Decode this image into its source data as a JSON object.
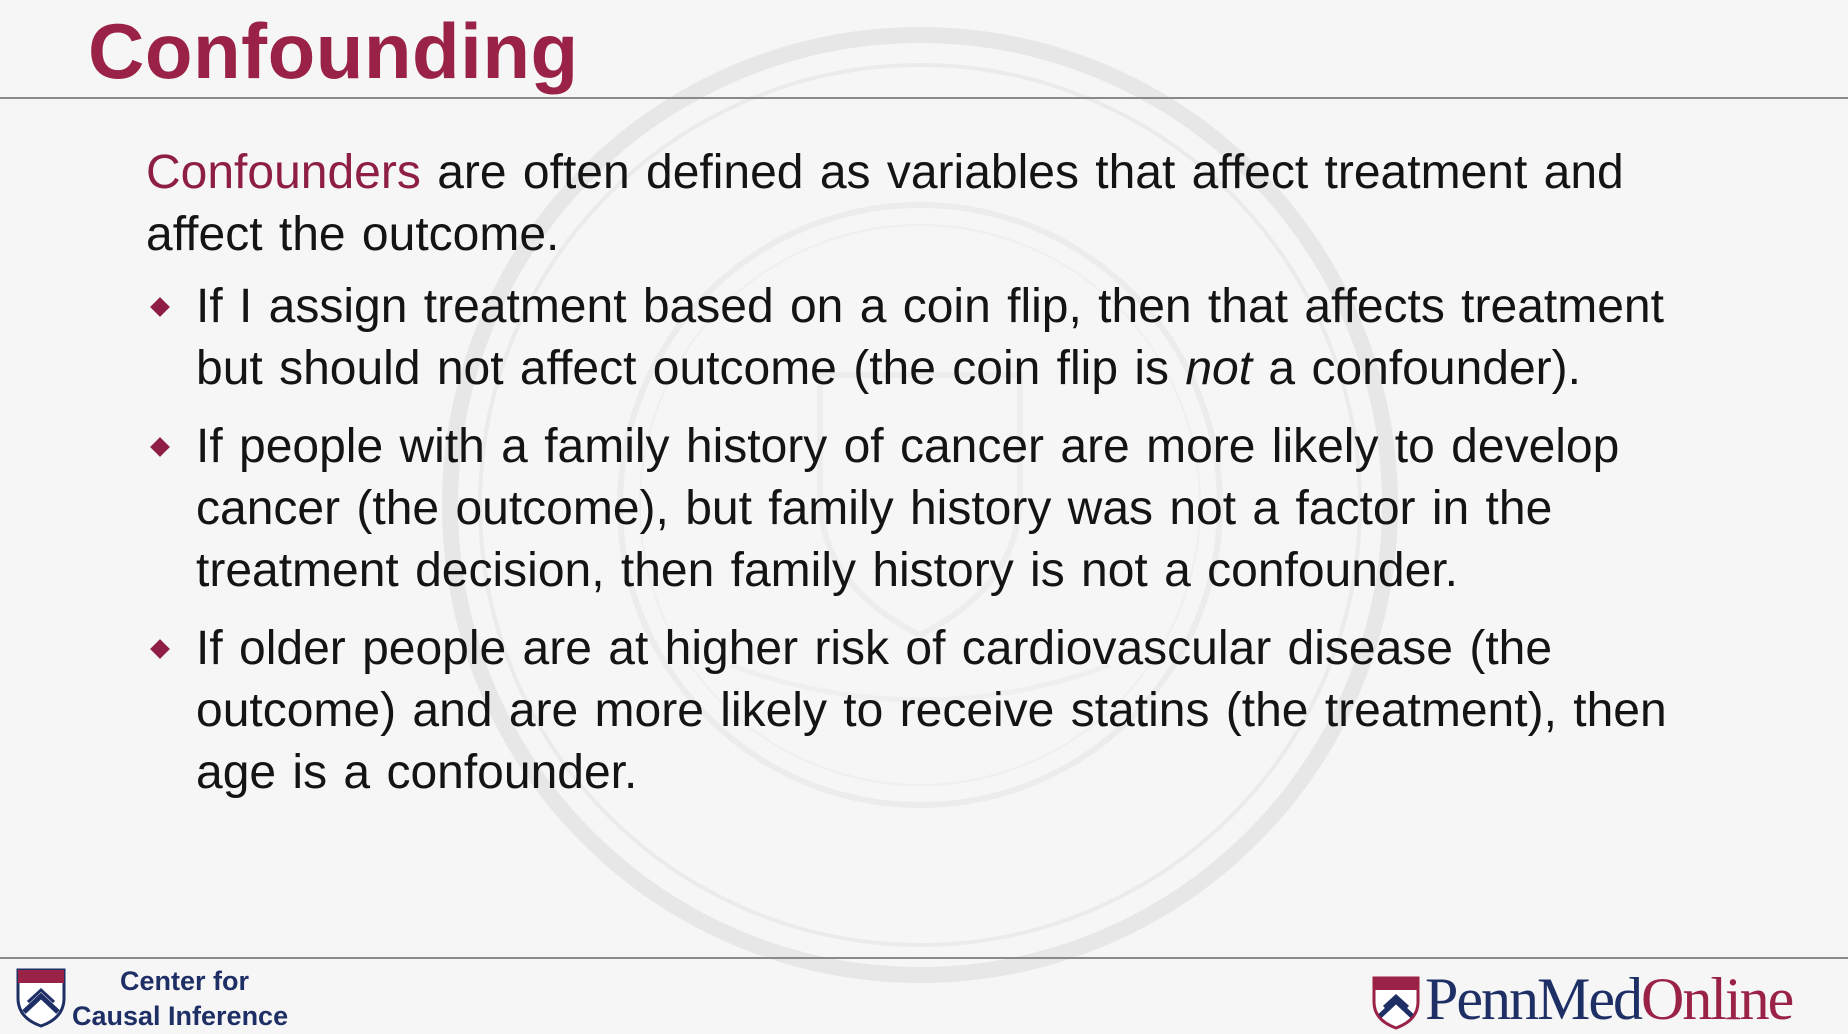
{
  "slide": {
    "title": "Confounding",
    "intro": {
      "term": "Confounders",
      "rest": " are often defined as variables that affect treatment and affect the outcome."
    },
    "bullets": [
      {
        "before": "If I assign treatment based on a coin flip, then that affects treatment but should not affect outcome (the coin flip is ",
        "emphasis": "not",
        "after": " a confounder)."
      },
      {
        "text": "If people with a family history of cancer are more likely to develop cancer (the outcome), but family history was not a factor in the treatment decision, then family history is not a confounder."
      },
      {
        "text": "If older people are at higher risk of cardiovascular disease (the outcome) and are more likely to receive statins (the treatment), then age is a confounder."
      }
    ]
  },
  "footer": {
    "left_logo": {
      "icon": "penn-shield-icon",
      "line1": "Center for",
      "line2": "Causal Inference"
    },
    "right_logo": {
      "icon": "penn-shield-icon",
      "part1": "PennMed",
      "part2": "Online"
    }
  },
  "watermark": {
    "icon": "university-seal-icon"
  },
  "colors": {
    "title": "#9b2247",
    "accent": "#8e1e45",
    "logo_navy": "#1e2f66",
    "background": "#f6f6f6"
  }
}
